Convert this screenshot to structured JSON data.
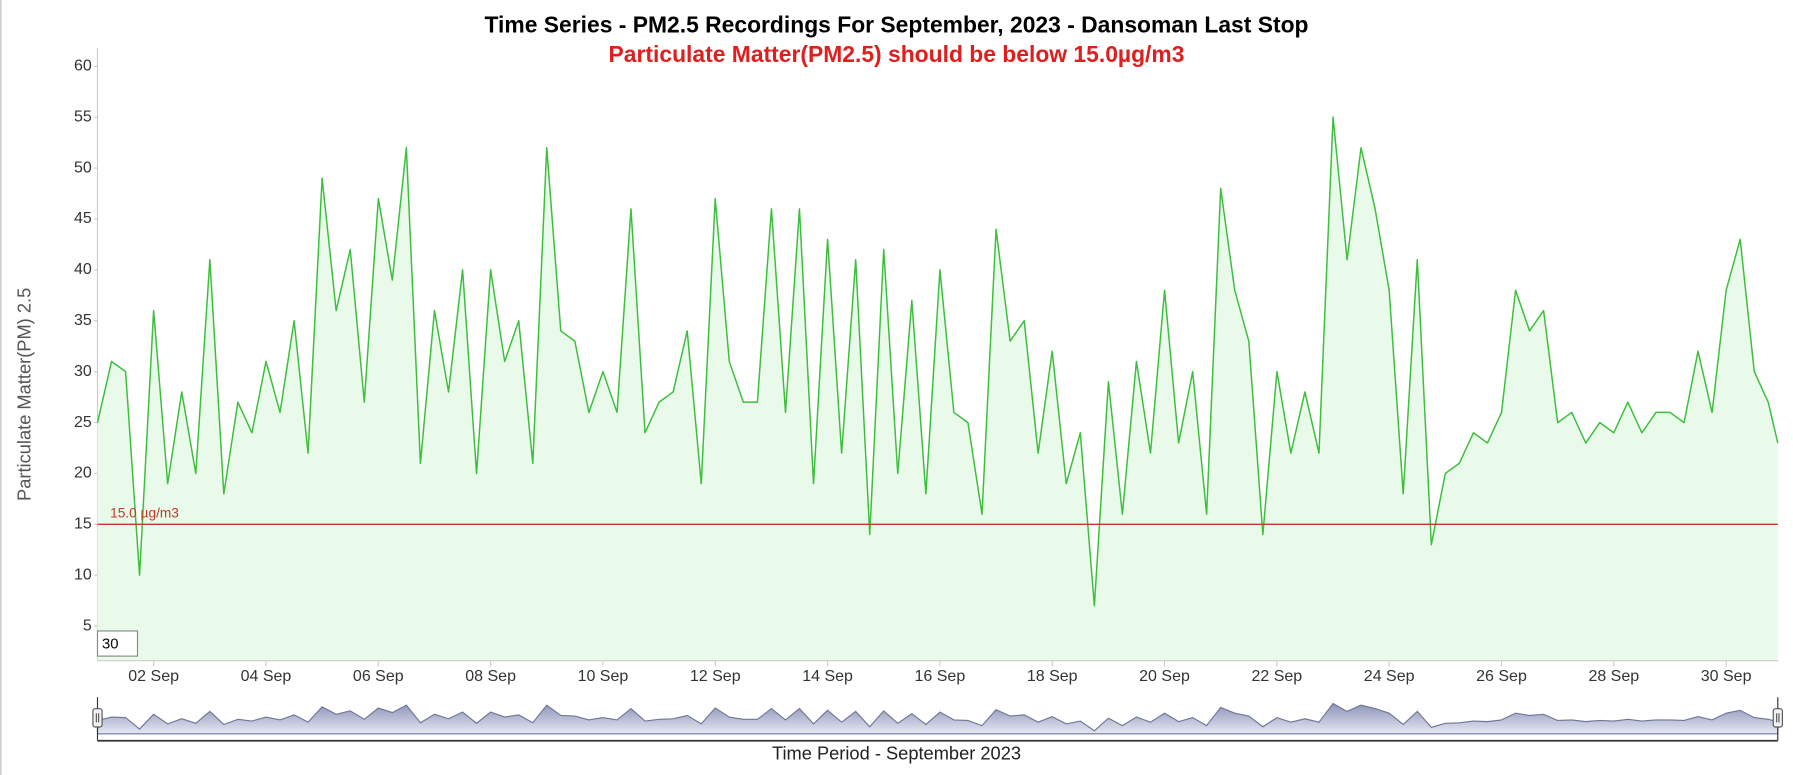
{
  "chart_data": {
    "type": "line",
    "title": "Time Series - PM2.5 Recordings For September, 2023 - Dansoman Last Stop",
    "subtitle": "Particulate Matter(PM2.5) should be below 15.0µg/m3",
    "ylabel": "Particulate Matter(PM) 2.5",
    "xlabel": "Time Period - September 2023",
    "range_input": "30",
    "threshold": {
      "value": 15,
      "label": "15.0 µg/m3",
      "color": "#c0392b"
    },
    "ylim": [
      1.6,
      61.8
    ],
    "yticks": [
      5,
      10,
      15,
      20,
      25,
      30,
      35,
      40,
      45,
      50,
      55,
      60
    ],
    "xlim": [
      1,
      30.92
    ],
    "xticks": [
      {
        "value": 2,
        "label": "02 Sep"
      },
      {
        "value": 4,
        "label": "04 Sep"
      },
      {
        "value": 6,
        "label": "06 Sep"
      },
      {
        "value": 8,
        "label": "08 Sep"
      },
      {
        "value": 10,
        "label": "10 Sep"
      },
      {
        "value": 12,
        "label": "12 Sep"
      },
      {
        "value": 14,
        "label": "14 Sep"
      },
      {
        "value": 16,
        "label": "16 Sep"
      },
      {
        "value": 18,
        "label": "18 Sep"
      },
      {
        "value": 20,
        "label": "20 Sep"
      },
      {
        "value": 22,
        "label": "22 Sep"
      },
      {
        "value": 24,
        "label": "24 Sep"
      },
      {
        "value": 26,
        "label": "26 Sep"
      },
      {
        "value": 28,
        "label": "28 Sep"
      },
      {
        "value": 30,
        "label": "30 Sep"
      }
    ],
    "series": [
      {
        "color": "#3cbf3c",
        "fill": "#eafaea",
        "x": [
          1,
          1.25,
          1.5,
          1.75,
          2,
          2.25,
          2.5,
          2.75,
          3,
          3.25,
          3.5,
          3.75,
          4,
          4.25,
          4.5,
          4.75,
          5,
          5.25,
          5.5,
          5.75,
          6,
          6.25,
          6.5,
          6.75,
          7,
          7.25,
          7.5,
          7.75,
          8,
          8.25,
          8.5,
          8.75,
          9,
          9.25,
          9.5,
          9.75,
          10,
          10.25,
          10.5,
          10.75,
          11,
          11.25,
          11.5,
          11.75,
          12,
          12.25,
          12.5,
          12.75,
          13,
          13.25,
          13.5,
          13.75,
          14,
          14.25,
          14.5,
          14.75,
          15,
          15.25,
          15.5,
          15.75,
          16,
          16.25,
          16.5,
          16.75,
          17,
          17.25,
          17.5,
          17.75,
          18,
          18.25,
          18.5,
          18.75,
          19,
          19.25,
          19.5,
          19.75,
          20,
          20.25,
          20.5,
          20.75,
          21,
          21.25,
          21.5,
          21.75,
          22,
          22.25,
          22.5,
          22.75,
          23,
          23.25,
          23.5,
          23.75,
          24,
          24.25,
          24.5,
          24.75,
          25,
          25.25,
          25.5,
          25.75,
          26,
          26.25,
          26.5,
          26.75,
          27,
          27.25,
          27.5,
          27.75,
          28,
          28.25,
          28.5,
          28.75,
          29,
          29.25,
          29.5,
          29.75,
          30,
          30.25,
          30.5,
          30.75,
          30.92
        ],
        "values": [
          25,
          31,
          30,
          10,
          36,
          19,
          28,
          20,
          41,
          18,
          27,
          24,
          31,
          26,
          35,
          22,
          49,
          36,
          42,
          27,
          47,
          39,
          52,
          21,
          36,
          28,
          40,
          20,
          40,
          31,
          35,
          21,
          52,
          34,
          33,
          26,
          30,
          26,
          46,
          24,
          27,
          28,
          34,
          19,
          47,
          31,
          27,
          27,
          46,
          26,
          46,
          19,
          43,
          22,
          41,
          14,
          42,
          20,
          37,
          18,
          40,
          26,
          25,
          16,
          44,
          33,
          35,
          22,
          32,
          19,
          24,
          7,
          29,
          16,
          31,
          22,
          38,
          23,
          30,
          16,
          48,
          38,
          33,
          14,
          30,
          22,
          28,
          22,
          55,
          41,
          52,
          46,
          38,
          18,
          41,
          13,
          20,
          21,
          24,
          23,
          26,
          38,
          34,
          36,
          25,
          26,
          23,
          25,
          24,
          27,
          24,
          26,
          26,
          25,
          32,
          26,
          38,
          43,
          30,
          27,
          23
        ]
      }
    ]
  }
}
